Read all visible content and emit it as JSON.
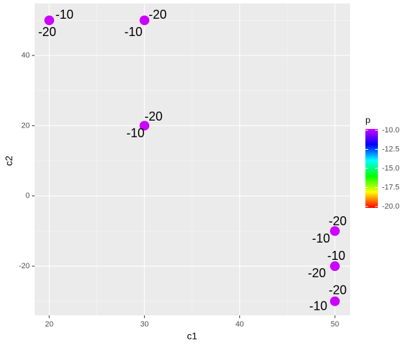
{
  "chart_data": {
    "type": "scatter",
    "x_label": "c1",
    "y_label": "c2",
    "x": [
      20,
      30,
      30,
      50,
      50,
      50
    ],
    "y": [
      50,
      50,
      20,
      -10,
      -20,
      -30
    ],
    "p": [
      -10,
      -10,
      -10,
      -10,
      -10,
      -10
    ],
    "labels_a": [
      -10,
      -10,
      -10,
      -10,
      -10,
      -10
    ],
    "labels_b": [
      -20,
      -20,
      -20,
      -20,
      -20,
      -20
    ],
    "xlim": [
      18.47,
      51.6
    ],
    "ylim": [
      -34,
      54.8
    ],
    "xticks": [
      20,
      30,
      40,
      50
    ],
    "yticks": [
      -20,
      0,
      20,
      40
    ],
    "grid": true,
    "legend": {
      "title": "p",
      "position": "right",
      "lim": [
        -20,
        -10
      ],
      "colors": [
        "#ff0000",
        "#ffff00",
        "#00ff00",
        "#00ffff",
        "#0000ff",
        "#cc00ff"
      ],
      "ticks": [
        {
          "value": -10,
          "label": "-10.0"
        },
        {
          "value": -12.5,
          "label": "-12.5"
        },
        {
          "value": -15,
          "label": "-15.0"
        },
        {
          "value": -17.5,
          "label": "-17.5"
        },
        {
          "value": -20,
          "label": "-20.0"
        }
      ]
    }
  }
}
